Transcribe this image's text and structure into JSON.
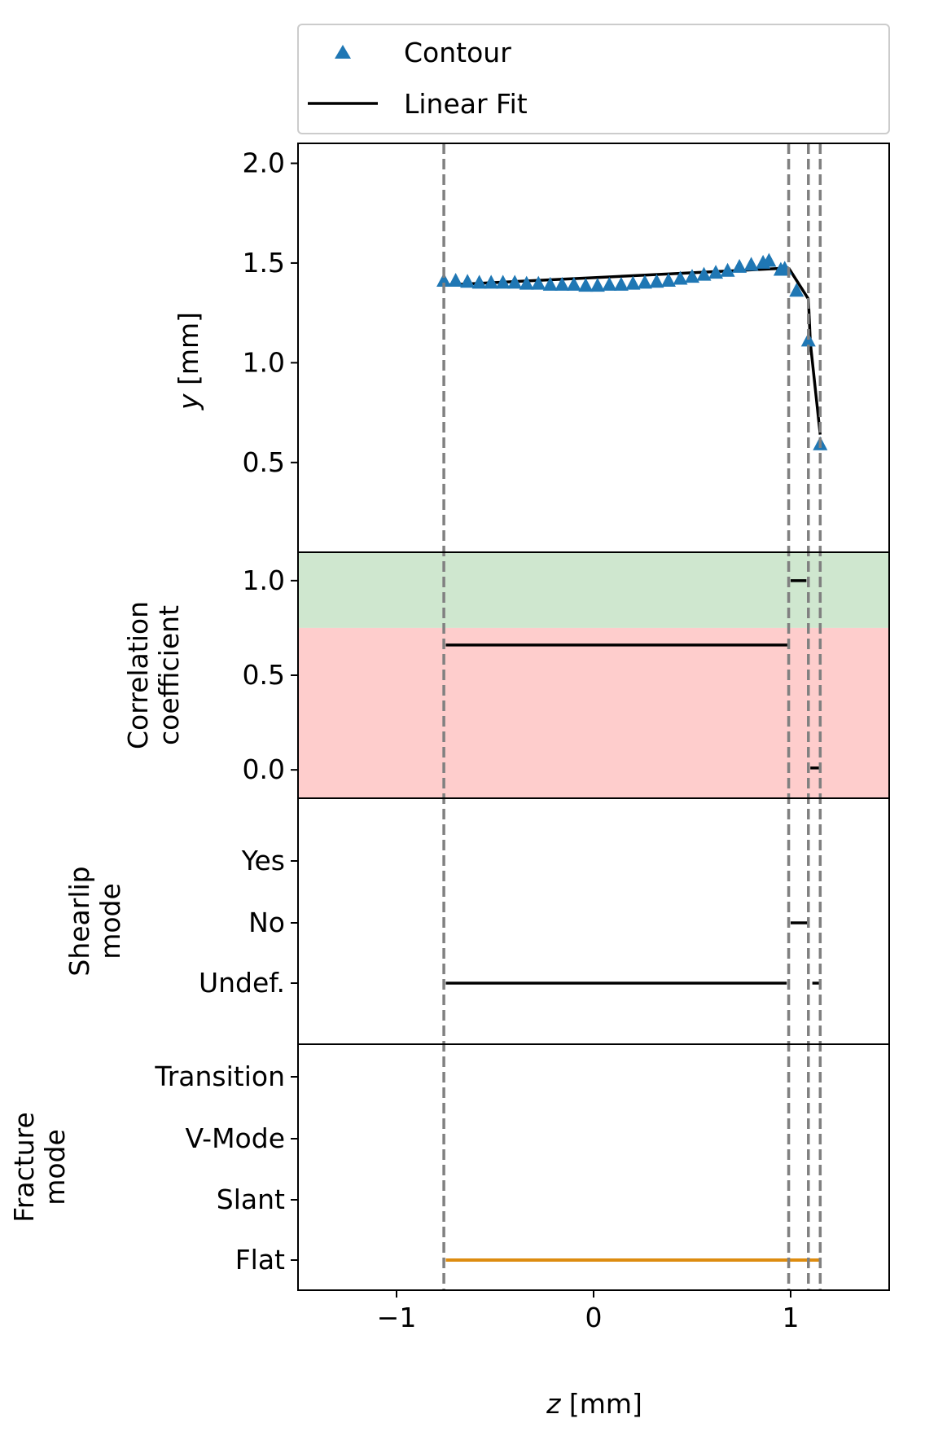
{
  "legend": {
    "items": [
      {
        "label": "Contour",
        "kind": "marker",
        "color": "#1f77b4"
      },
      {
        "label": "Linear Fit",
        "kind": "line",
        "color": "#000000"
      }
    ]
  },
  "chart_data": [
    {
      "panel": "profile",
      "type": "scatter",
      "ylabel_var": "y",
      "ylabel_unit": " [mm]",
      "ylim": [
        0.05,
        2.1
      ],
      "yticks": [
        0.5,
        1.0,
        1.5,
        2.0
      ],
      "ytick_labels": [
        "0.5",
        "1.0",
        "1.5",
        "2.0"
      ],
      "series": [
        {
          "name": "Contour",
          "marker": "triangle",
          "color": "#1f77b4",
          "points": [
            [
              -0.76,
              1.41
            ],
            [
              -0.7,
              1.41
            ],
            [
              -0.64,
              1.405
            ],
            [
              -0.58,
              1.4
            ],
            [
              -0.52,
              1.4
            ],
            [
              -0.46,
              1.4
            ],
            [
              -0.4,
              1.4
            ],
            [
              -0.34,
              1.395
            ],
            [
              -0.28,
              1.395
            ],
            [
              -0.22,
              1.39
            ],
            [
              -0.16,
              1.39
            ],
            [
              -0.1,
              1.39
            ],
            [
              -0.04,
              1.385
            ],
            [
              0.02,
              1.385
            ],
            [
              0.08,
              1.39
            ],
            [
              0.14,
              1.39
            ],
            [
              0.2,
              1.395
            ],
            [
              0.26,
              1.4
            ],
            [
              0.32,
              1.405
            ],
            [
              0.38,
              1.41
            ],
            [
              0.44,
              1.42
            ],
            [
              0.5,
              1.43
            ],
            [
              0.56,
              1.44
            ],
            [
              0.62,
              1.45
            ],
            [
              0.68,
              1.46
            ],
            [
              0.74,
              1.48
            ],
            [
              0.8,
              1.49
            ],
            [
              0.86,
              1.5
            ],
            [
              0.89,
              1.51
            ],
            [
              0.95,
              1.465
            ],
            [
              0.97,
              1.47
            ],
            [
              1.03,
              1.36
            ],
            [
              1.09,
              1.11
            ],
            [
              1.15,
              0.59
            ]
          ]
        },
        {
          "name": "Linear Fit",
          "type": "line",
          "color": "#000000",
          "segments": [
            [
              [
                -0.75,
                1.39
              ],
              [
                0.99,
                1.475
              ]
            ],
            [
              [
                0.99,
                1.475
              ],
              [
                1.09,
                1.32
              ]
            ],
            [
              [
                1.09,
                1.32
              ],
              [
                1.1,
                1.1
              ]
            ],
            [
              [
                1.1,
                1.1
              ],
              [
                1.15,
                0.64
              ]
            ]
          ]
        }
      ]
    },
    {
      "panel": "correlation",
      "type": "line",
      "ylabel": "Correlation\ncoefficient",
      "ylim": [
        -0.15,
        1.15
      ],
      "yticks": [
        0.0,
        0.5,
        1.0
      ],
      "ytick_labels": [
        "0.0",
        "0.5",
        "1.0"
      ],
      "bands": [
        {
          "from": 0.75,
          "to": 1.15,
          "color": "#cfe7cf"
        },
        {
          "from": -0.15,
          "to": 0.75,
          "color": "#fecdcc"
        }
      ],
      "segments": [
        {
          "x": [
            -0.75,
            0.99
          ],
          "y": 0.66
        },
        {
          "x": [
            1.0,
            1.08
          ],
          "y": 1.0
        },
        {
          "x": [
            1.1,
            1.15
          ],
          "y": 0.01
        }
      ]
    },
    {
      "panel": "shearlip",
      "type": "categorical-step",
      "ylabel": "Shearlip\nmode",
      "categories": [
        "Undef.",
        "No",
        "Yes"
      ],
      "segments": [
        {
          "x": [
            -0.75,
            0.98
          ],
          "category": "Undef."
        },
        {
          "x": [
            1.0,
            1.09
          ],
          "category": "No"
        },
        {
          "x": [
            1.11,
            1.15
          ],
          "category": "Undef."
        }
      ]
    },
    {
      "panel": "fracture",
      "type": "categorical-step",
      "ylabel": "Fracture\nmode",
      "color": "#dd8c10",
      "categories": [
        "Flat",
        "Slant",
        "V-Mode",
        "Transition"
      ],
      "segments": [
        {
          "x": [
            -0.75,
            1.15
          ],
          "category": "Flat"
        }
      ],
      "xlabel_var": "z",
      "xlabel_unit": " [mm]",
      "xlim": [
        -1.5,
        1.5
      ],
      "xticks": [
        -1,
        0,
        1
      ],
      "xtick_labels": [
        "−1",
        "0",
        "1"
      ]
    }
  ],
  "vlines": {
    "x": [
      -0.76,
      0.99,
      1.09,
      1.15
    ],
    "color": "#808080"
  }
}
